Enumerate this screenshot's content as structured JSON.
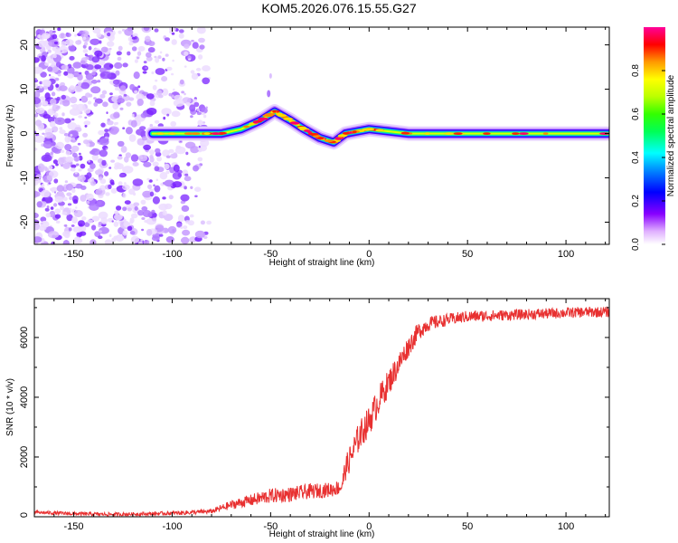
{
  "title": "KOM5.2026.076.15.55.G27",
  "chart_data": [
    {
      "type": "heatmap",
      "title": "KOM5.2026.076.15.55.G27",
      "xlabel": "Height of straight line (km)",
      "ylabel": "Frequency (Hz)",
      "xlim": [
        -170,
        122
      ],
      "ylim": [
        -25,
        24
      ],
      "xticks": [
        -150,
        -100,
        -50,
        0,
        50,
        100
      ],
      "yticks": [
        -20,
        -10,
        0,
        10,
        20
      ],
      "colorbar": {
        "label": "Normalized spectral amplitude",
        "range": [
          0,
          1
        ],
        "ticks": [
          0.0,
          0.2,
          0.4,
          0.6,
          0.8
        ],
        "tick_labels": [
          "0.0",
          "0.2",
          "0.4",
          "0.6",
          "0.8"
        ],
        "colormap": [
          "#ffffff",
          "#cc00ff",
          "#5500ff",
          "#0000ff",
          "#0077ff",
          "#00ffff",
          "#00ff66",
          "#22ff00",
          "#aaff00",
          "#ffff00",
          "#ff9900",
          "#ff0000",
          "#ff00aa"
        ]
      },
      "ridge": [
        {
          "x": -110,
          "f": 0
        },
        {
          "x": -85,
          "f": 0
        },
        {
          "x": -75,
          "f": 0
        },
        {
          "x": -65,
          "f": 1
        },
        {
          "x": -55,
          "f": 3
        },
        {
          "x": -48,
          "f": 5
        },
        {
          "x": -40,
          "f": 3
        },
        {
          "x": -33,
          "f": 1
        },
        {
          "x": -25,
          "f": -1
        },
        {
          "x": -18,
          "f": -2
        },
        {
          "x": -12,
          "f": 0
        },
        {
          "x": 0,
          "f": 1
        },
        {
          "x": 10,
          "f": 0.5
        },
        {
          "x": 20,
          "f": 0
        },
        {
          "x": 122,
          "f": 0
        }
      ],
      "noise_region_x": [
        -170,
        -85
      ]
    },
    {
      "type": "line",
      "xlabel": "Height of straight line (km)",
      "ylabel": "SNR (10 * v/v)",
      "xlim": [
        -170,
        122
      ],
      "ylim": [
        0,
        7300
      ],
      "xticks": [
        -150,
        -100,
        -50,
        0,
        50,
        100
      ],
      "yticks": [
        0,
        2000,
        4000,
        6000
      ],
      "color": "#e83030",
      "x": [
        -170,
        -150,
        -130,
        -110,
        -95,
        -80,
        -70,
        -60,
        -50,
        -40,
        -30,
        -20,
        -14,
        -12,
        -8,
        -5,
        0,
        5,
        10,
        15,
        20,
        25,
        30,
        40,
        50,
        70,
        90,
        110,
        122
      ],
      "y": [
        150,
        100,
        80,
        100,
        130,
        180,
        400,
        550,
        700,
        750,
        850,
        900,
        1000,
        1600,
        2200,
        2700,
        3200,
        3900,
        4500,
        5100,
        5700,
        6200,
        6450,
        6600,
        6700,
        6750,
        6800,
        6850,
        6850
      ],
      "noise_amplitude": [
        60,
        60,
        60,
        60,
        70,
        80,
        150,
        200,
        250,
        250,
        250,
        250,
        250,
        400,
        500,
        500,
        500,
        500,
        450,
        400,
        350,
        300,
        250,
        200,
        200,
        180,
        180,
        180,
        180
      ]
    }
  ]
}
